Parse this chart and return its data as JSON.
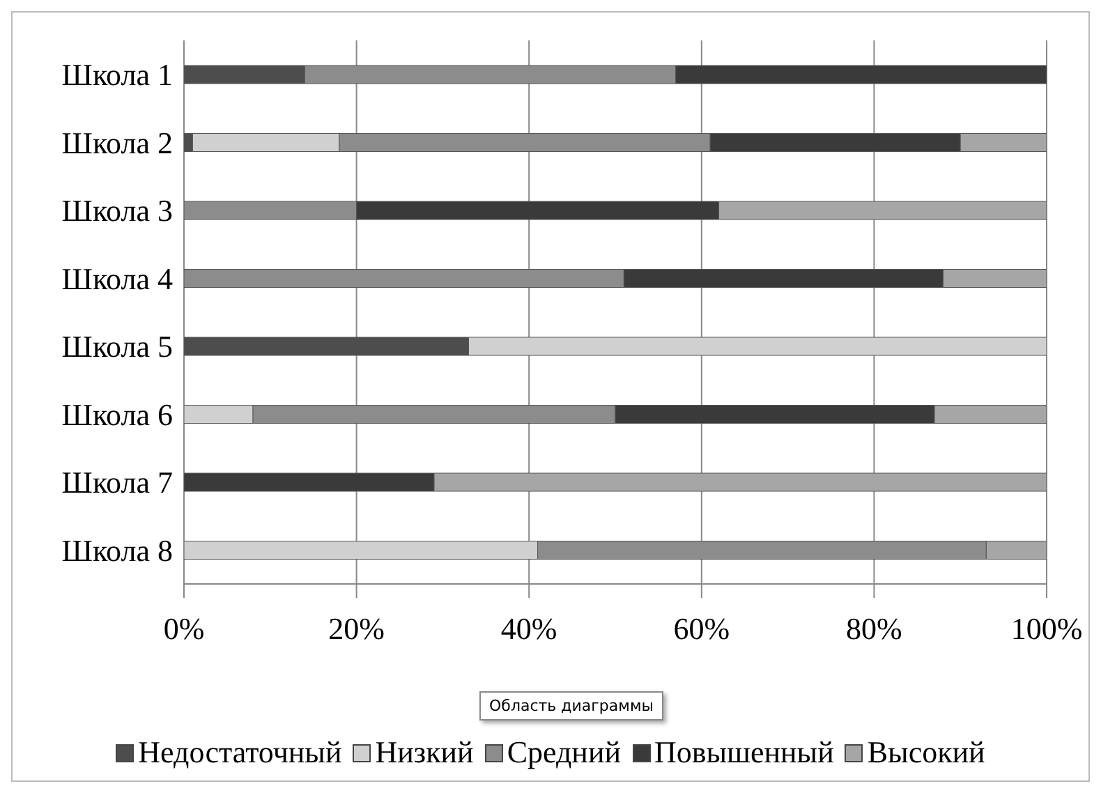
{
  "chart_data": {
    "type": "bar",
    "orientation": "horizontal",
    "stacked": true,
    "categories": [
      "Школа 1",
      "Школа 2",
      "Школа 3",
      "Школа 4",
      "Школа 5",
      "Школа 6",
      "Школа 7",
      "Школа 8"
    ],
    "series": [
      {
        "name": "Недостаточный",
        "color": "#4d4d4d",
        "values": [
          14,
          1,
          0,
          0,
          33,
          0,
          0,
          0
        ]
      },
      {
        "name": "Низкий",
        "color": "#d0d0d0",
        "values": [
          0,
          17,
          0,
          0,
          67,
          8,
          0,
          41
        ]
      },
      {
        "name": "Средний",
        "color": "#8c8c8c",
        "values": [
          43,
          43,
          20,
          51,
          0,
          42,
          0,
          52
        ]
      },
      {
        "name": "Повышенный",
        "color": "#3a3a3a",
        "values": [
          43,
          29,
          42,
          37,
          0,
          37,
          29,
          0
        ]
      },
      {
        "name": "Высокий",
        "color": "#a6a6a6",
        "values": [
          0,
          10,
          38,
          12,
          0,
          13,
          71,
          7
        ]
      }
    ],
    "xlim": [
      0,
      100
    ],
    "xticks": [
      {
        "value": 0,
        "label": "0%"
      },
      {
        "value": 20,
        "label": "20%"
      },
      {
        "value": 40,
        "label": "40%"
      },
      {
        "value": 60,
        "label": "60%"
      },
      {
        "value": 80,
        "label": "80%"
      },
      {
        "value": 100,
        "label": "100%"
      }
    ],
    "grid": "x",
    "legend": "bottom",
    "annotations": [
      "Область диаграммы"
    ]
  }
}
